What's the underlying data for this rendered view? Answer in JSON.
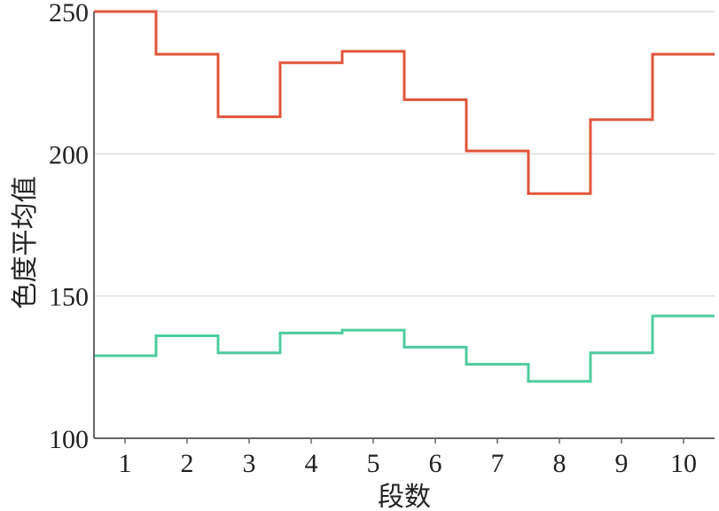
{
  "chart_data": {
    "type": "line",
    "step": "mid",
    "title": "",
    "xlabel": "段数",
    "ylabel": "色度平均值",
    "categories": [
      1,
      2,
      3,
      4,
      5,
      6,
      7,
      8,
      9,
      10
    ],
    "xlim": [
      0.5,
      10.5
    ],
    "ylim": [
      100,
      250
    ],
    "yticks": [
      100,
      150,
      200,
      250
    ],
    "grid": "horizontal",
    "legend": "none",
    "series": [
      {
        "color": "#e0553a",
        "values": [
          250,
          235,
          213,
          232,
          236,
          219,
          201,
          186,
          212,
          235
        ]
      },
      {
        "color": "#4dcc9c",
        "values": [
          129,
          136,
          130,
          137,
          138,
          132,
          126,
          120,
          130,
          143
        ]
      }
    ]
  }
}
